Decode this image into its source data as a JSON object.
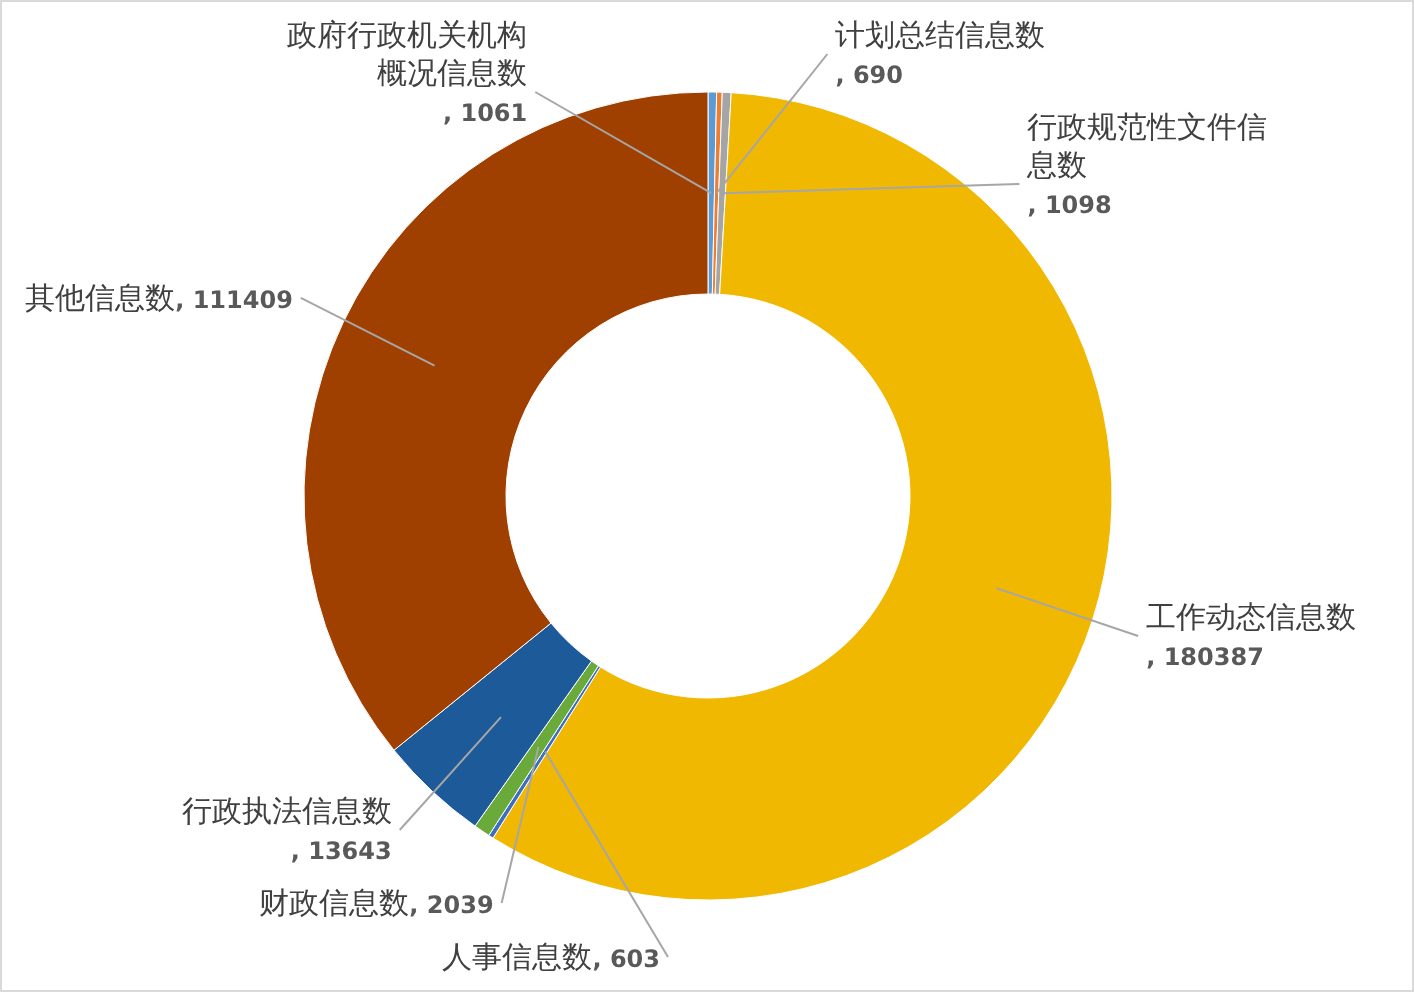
{
  "chart_data": {
    "type": "donut",
    "categories": [
      "政府行政机关机构概况信息数",
      "计划总结信息数",
      "行政规范性文件信息数",
      "工作动态信息数",
      "人事信息数",
      "财政信息数",
      "行政执法信息数",
      "其他信息数"
    ],
    "values": [
      1061,
      690,
      1098,
      180387,
      603,
      2039,
      13643,
      111409
    ],
    "value_labels": [
      ", 1061",
      ", 690",
      ", 1098",
      ", 180387",
      ", 603",
      ", 2039",
      ", 13643",
      ", 111409"
    ],
    "colors": [
      "#5b9bd5",
      "#ed7d31",
      "#a5a5a5",
      "#f0b800",
      "#3d6fc0",
      "#6aaa3a",
      "#1d5a99",
      "#a04000"
    ]
  }
}
